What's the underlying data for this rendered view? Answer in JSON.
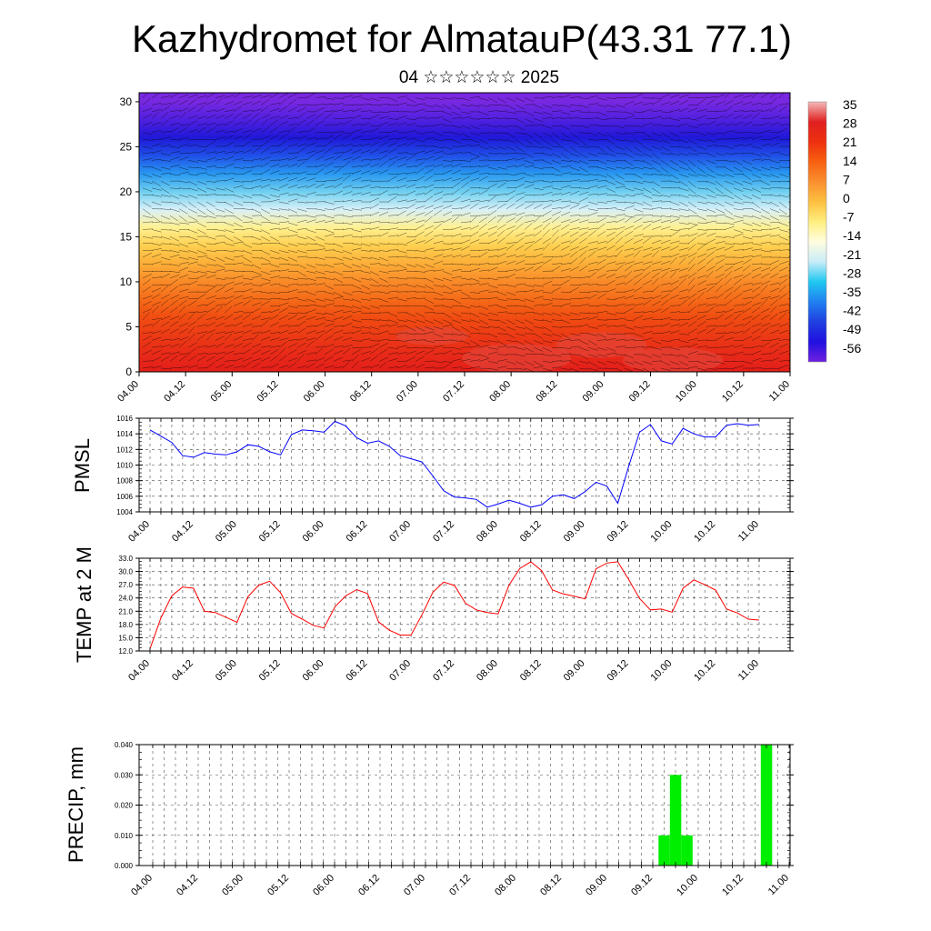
{
  "title": "Kazhydromet for AlmatauP(43.31 77.1)",
  "subtitle": "04 ☆☆☆☆☆☆ 2025",
  "time_ticks": [
    "04.00",
    "04.12",
    "05.00",
    "05.12",
    "06.00",
    "06.12",
    "07.00",
    "07.12",
    "08.00",
    "08.12",
    "09.00",
    "09.12",
    "10.00",
    "10.12",
    "11.00"
  ],
  "colors": {
    "pmsl_line": "#0000ff",
    "temp_line": "#ff0000",
    "precip_bar": "#00ee00"
  },
  "chart_data": [
    {
      "type": "heatmap",
      "name": "upper-air-cross-section",
      "yticks": [
        0,
        5,
        10,
        15,
        20,
        25,
        30
      ],
      "ylim": [
        0,
        31
      ],
      "colorbar": {
        "labels": [
          "35",
          "28",
          "21",
          "14",
          "7",
          "0",
          "-7",
          "-14",
          "-21",
          "-28",
          "-35",
          "-42",
          "-49",
          "-56"
        ],
        "colors": [
          "#f4b8b8",
          "#e02020",
          "#ee3010",
          "#f86010",
          "#fa9030",
          "#fdc040",
          "#ffef80",
          "#fffde0",
          "#c8ecf8",
          "#20c8f0",
          "#2080f0",
          "#2040e0",
          "#2010e0",
          "#7020e0"
        ]
      },
      "field": {
        "levels": [
          0,
          2,
          4,
          6,
          8,
          10,
          12,
          14,
          16,
          18,
          20,
          22,
          24,
          26,
          28,
          30
        ],
        "colors": [
          "#e31e1a",
          "#e82a18",
          "#ec3a15",
          "#f04c12",
          "#f56a18",
          "#f98a28",
          "#fcae38",
          "#fed050",
          "#fff090",
          "#d8f0f8",
          "#70d0f0",
          "#2898f0",
          "#2050e8",
          "#2018d8",
          "#5020e0",
          "#7828e0"
        ]
      }
    },
    {
      "type": "line",
      "name": "PMSL",
      "ylabel": "PMSL",
      "yticks": [
        "1004",
        "1006",
        "1008",
        "1010",
        "1012",
        "1014",
        "1016"
      ],
      "ylim": [
        1004,
        1016
      ],
      "x": [
        0,
        1,
        2,
        3,
        4,
        5,
        6,
        7,
        8,
        9,
        10,
        11,
        12,
        13,
        14,
        15,
        16,
        17,
        18,
        19,
        20,
        21,
        22,
        23,
        24,
        25,
        26,
        27,
        28,
        29,
        30,
        31,
        32,
        33,
        34,
        35,
        36,
        37,
        38,
        39,
        40,
        41,
        42,
        43,
        44,
        45,
        46,
        47,
        48,
        49,
        50,
        51,
        52,
        53,
        54,
        55,
        56
      ],
      "values": [
        1014.5,
        1013.7,
        1012.9,
        1011.2,
        1011.0,
        1011.6,
        1011.4,
        1011.3,
        1011.7,
        1012.6,
        1012.4,
        1011.7,
        1011.3,
        1013.9,
        1014.5,
        1014.4,
        1014.2,
        1015.6,
        1015.0,
        1013.5,
        1012.8,
        1013.1,
        1012.4,
        1011.2,
        1010.8,
        1010.4,
        1008.6,
        1006.7,
        1005.9,
        1005.8,
        1005.6,
        1004.6,
        1005.0,
        1005.5,
        1005.1,
        1004.6,
        1004.9,
        1006.0,
        1006.2,
        1005.7,
        1006.6,
        1007.8,
        1007.3,
        1005.1,
        1009.8,
        1014.2,
        1015.2,
        1013.1,
        1012.7,
        1014.7,
        1014.0,
        1013.6,
        1013.6,
        1015.1,
        1015.3,
        1015.1,
        1015.2
      ]
    },
    {
      "type": "line",
      "name": "TEMP at 2 M",
      "ylabel": "TEMP at 2 M",
      "yticks": [
        "12.0",
        "15.0",
        "18.0",
        "21.0",
        "24.0",
        "27.0",
        "30.0",
        "33.0"
      ],
      "ylim": [
        12,
        33
      ],
      "x": [
        0,
        1,
        2,
        3,
        4,
        5,
        6,
        7,
        8,
        9,
        10,
        11,
        12,
        13,
        14,
        15,
        16,
        17,
        18,
        19,
        20,
        21,
        22,
        23,
        24,
        25,
        26,
        27,
        28,
        29,
        30,
        31,
        32,
        33,
        34,
        35,
        36,
        37,
        38,
        39,
        40,
        41,
        42,
        43,
        44,
        45,
        46,
        47,
        48,
        49,
        50,
        51,
        52,
        53,
        54,
        55,
        56
      ],
      "values": [
        12.5,
        19.5,
        24.5,
        26.5,
        26.2,
        21.0,
        20.7,
        19.6,
        18.5,
        24.3,
        26.9,
        27.8,
        25.2,
        20.5,
        19.2,
        17.8,
        17.2,
        22.0,
        24.5,
        25.9,
        25.0,
        18.6,
        16.7,
        15.6,
        15.6,
        20.2,
        25.3,
        27.6,
        26.8,
        22.8,
        21.3,
        20.7,
        20.4,
        26.9,
        30.7,
        32.2,
        30.2,
        25.8,
        24.9,
        24.4,
        23.8,
        30.6,
        31.9,
        32.2,
        28.2,
        23.9,
        21.3,
        21.5,
        20.8,
        26.2,
        28.1,
        27.0,
        25.8,
        21.5,
        20.6,
        19.2,
        19.0
      ]
    },
    {
      "type": "bar",
      "name": "precip",
      "ylabel": "PRECIP, mm",
      "yticks": [
        "0.000",
        "0.010",
        "0.020",
        "0.030",
        "0.040"
      ],
      "ylim": [
        0,
        0.04
      ],
      "x": [
        45,
        46,
        47,
        54
      ],
      "values": [
        0.01,
        0.03,
        0.01,
        0.04
      ]
    }
  ]
}
